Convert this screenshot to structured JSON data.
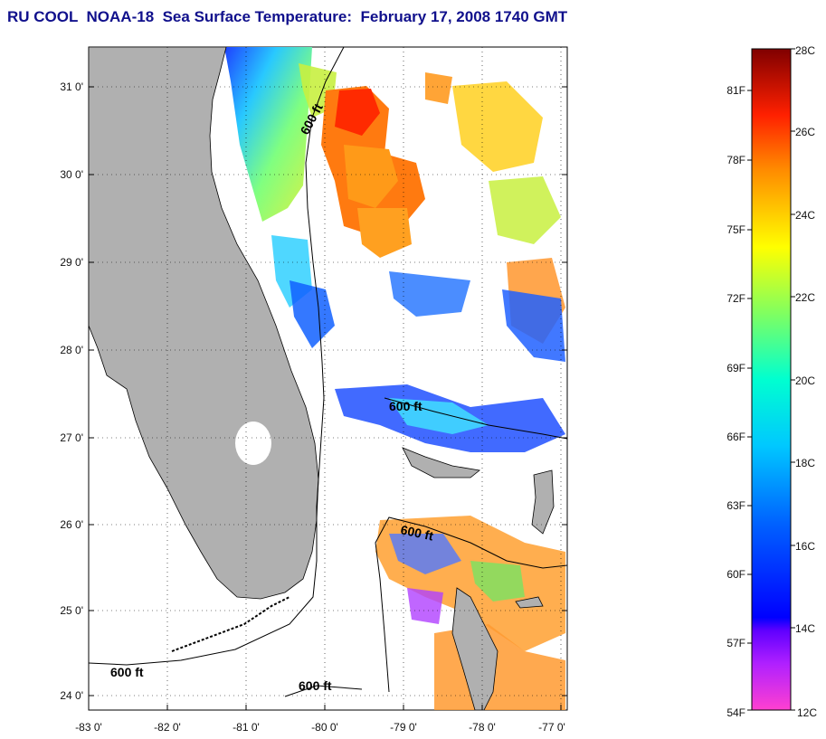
{
  "title": "RU COOL  NOAA-18  Sea Surface Temperature:  February 17, 2008 1740 GMT",
  "map": {
    "lat_labels": [
      "31 0'",
      "30 0'",
      "29 0'",
      "28 0'",
      "27 0'",
      "26 0'",
      "25 0'",
      "24 0'"
    ],
    "lon_labels": [
      "-83 0'",
      "-82 0'",
      "-81 0'",
      "-80 0'",
      "-79 0'",
      "-78 0'",
      "-77 0'"
    ],
    "contour_labels": [
      "600 ft",
      "600 ft",
      "600 ft",
      "600 ft",
      "600 ft"
    ],
    "land_color": "#b0b0b0"
  },
  "colorbar": {
    "fahrenheit_labels": [
      "81F",
      "78F",
      "75F",
      "72F",
      "69F",
      "66F",
      "63F",
      "60F",
      "57F",
      "54F"
    ],
    "celsius_labels": [
      "28C",
      "26C",
      "24C",
      "22C",
      "20C",
      "18C",
      "16C",
      "14C",
      "12C"
    ],
    "colors": [
      "#8b0000",
      "#ff0000",
      "#ff8000",
      "#ffff00",
      "#80ff60",
      "#00e0e0",
      "#0060ff",
      "#0000ff",
      "#8000ff",
      "#ff40c0"
    ]
  }
}
